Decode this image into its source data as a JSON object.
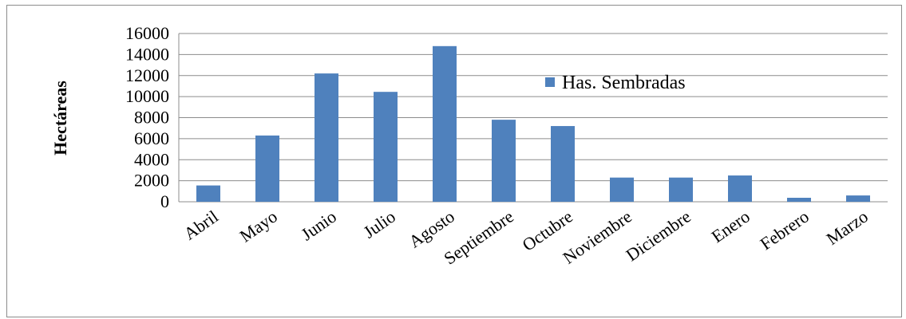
{
  "chart_data": {
    "type": "bar",
    "ylabel": "Hectáreas",
    "xlabel": "",
    "ylim": [
      0,
      16000
    ],
    "yticks": [
      0,
      2000,
      4000,
      6000,
      8000,
      10000,
      12000,
      14000,
      16000
    ],
    "grid": true,
    "legend_position": "top-right",
    "bar_color": "#4f81bd",
    "categories": [
      "Abril",
      "Mayo",
      "Junio",
      "Julio",
      "Agosto",
      "Septiembre",
      "Octubre",
      "Noviembre",
      "Diciembre",
      "Enero",
      "Febrero",
      "Marzo"
    ],
    "series": [
      {
        "name": "Has. Sembradas",
        "values": [
          1550,
          6300,
          12200,
          10450,
          14800,
          7800,
          7200,
          2300,
          2300,
          2500,
          380,
          600
        ]
      }
    ]
  }
}
